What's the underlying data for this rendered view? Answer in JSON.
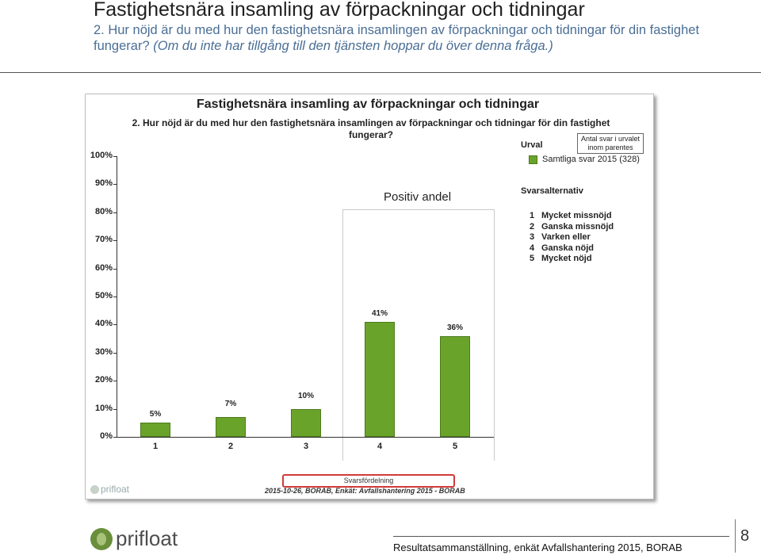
{
  "slide": {
    "title": "Fastighetsnära insamling av förpackningar och tidningar",
    "subtitle": "2. Hur nöjd är du med hur den fastighetsnära insamlingen av förpackningar och tidningar för din fastighet fungerar?",
    "subtitle_note": "(Om du inte har tillgång till den tjänsten hoppar du över denna fråga.)",
    "footer": "Resultatsammanställning, enkät Avfallshantering 2015, BORAB",
    "page_number": "8",
    "logo_text": "prifloat"
  },
  "panel": {
    "urval_heading": "Urval",
    "antal_box": "Antal svar i urvalet inom parentes",
    "legend_item": "Samtliga svar 2015 (328)",
    "positive_label": "Positiv andel",
    "svarsalternativ_heading": "Svarsalternativ",
    "options": [
      {
        "num": "1",
        "label": "Mycket missnöjd"
      },
      {
        "num": "2",
        "label": "Ganska missnöjd"
      },
      {
        "num": "3",
        "label": "Varken eller"
      },
      {
        "num": "4",
        "label": "Ganska nöjd"
      },
      {
        "num": "5",
        "label": "Mycket nöjd"
      }
    ],
    "svarsfordelning": "Svarsfördelning",
    "footnote": "2015-10-26, BORAB, Enkät: Avfallshantering 2015 - BORAB",
    "logo": "prifloat"
  },
  "chart_data": {
    "type": "bar",
    "title": "Fastighetsnära insamling av förpackningar och tidningar",
    "subtitle": "2. Hur nöjd är du med hur den fastighetsnära insamlingen av förpackningar och tidningar för din fastighet fungerar?",
    "categories": [
      "1",
      "2",
      "3",
      "4",
      "5"
    ],
    "series": [
      {
        "name": "Samtliga svar 2015 (328)",
        "values": [
          5,
          7,
          10,
          41,
          36
        ],
        "color": "#6aa32a"
      }
    ],
    "value_labels": [
      "5%",
      "7%",
      "10%",
      "41%",
      "36%"
    ],
    "ylim": [
      0,
      100
    ],
    "yticks": [
      "0%",
      "10%",
      "20%",
      "30%",
      "40%",
      "50%",
      "60%",
      "70%",
      "80%",
      "90%",
      "100%"
    ],
    "highlight": "Positiv andel",
    "legend_position": "right"
  }
}
